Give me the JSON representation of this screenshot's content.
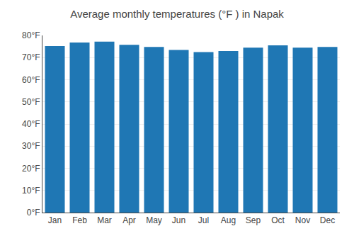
{
  "chart_data": {
    "type": "bar",
    "title": "Average monthly temperatures (°F ) in Napak",
    "categories": [
      "Jan",
      "Feb",
      "Mar",
      "Apr",
      "May",
      "Jun",
      "Jul",
      "Aug",
      "Sep",
      "Oct",
      "Nov",
      "Dec"
    ],
    "values": [
      75.2,
      76.8,
      77.2,
      75.8,
      74.8,
      73.4,
      72.5,
      73.0,
      74.5,
      75.5,
      74.5,
      74.8
    ],
    "ylim": [
      0,
      80
    ],
    "yticks": [
      {
        "value": 0,
        "label": "0°F"
      },
      {
        "value": 10,
        "label": "10°F"
      },
      {
        "value": 20,
        "label": "20°F"
      },
      {
        "value": 30,
        "label": "30°F"
      },
      {
        "value": 40,
        "label": "40°F"
      },
      {
        "value": 50,
        "label": "50°F"
      },
      {
        "value": 60,
        "label": "60°F"
      },
      {
        "value": 70,
        "label": "70°F"
      },
      {
        "value": 80,
        "label": "80°F"
      }
    ],
    "grid": true
  }
}
